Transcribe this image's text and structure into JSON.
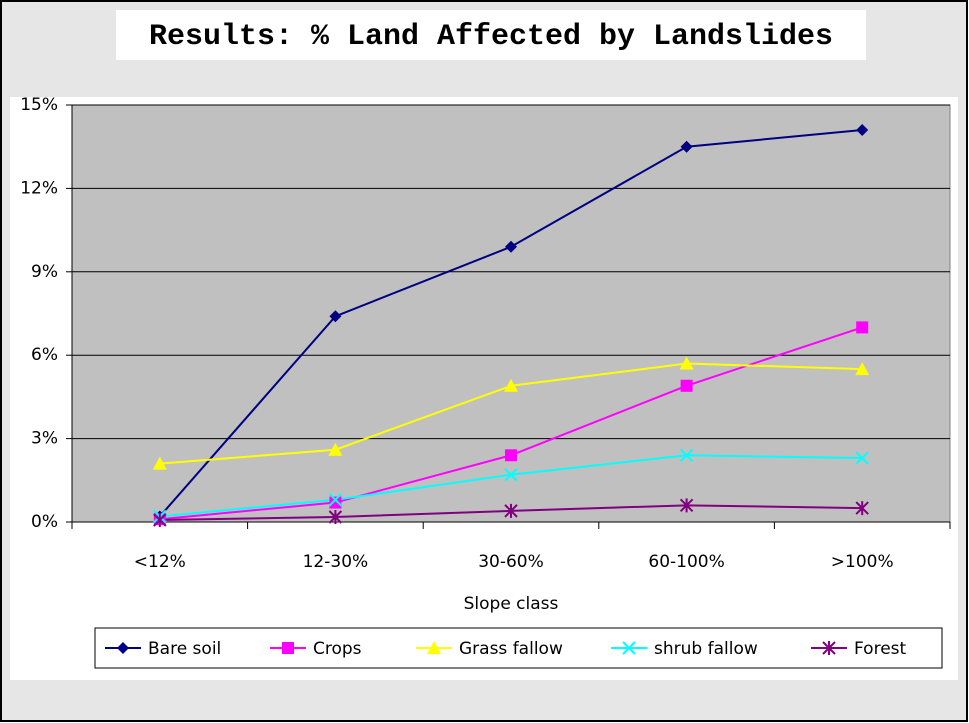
{
  "chart_data": {
    "type": "line",
    "title": "Results: % Land Affected by Landslides",
    "x_label": "Slope class",
    "categories": [
      "<12%",
      "12-30%",
      "30-60%",
      "60-100%",
      ">100%"
    ],
    "series": [
      {
        "name": "Bare soil",
        "color": "#000080",
        "marker": "diamond",
        "values": [
          0.2,
          7.4,
          9.9,
          13.5,
          14.1
        ]
      },
      {
        "name": "Crops",
        "color": "#ff00ff",
        "marker": "square",
        "values": [
          0.1,
          0.7,
          2.4,
          4.9,
          7.0
        ]
      },
      {
        "name": "Grass fallow",
        "color": "#ffff00",
        "marker": "triangle",
        "values": [
          2.1,
          2.6,
          4.9,
          5.7,
          5.5
        ]
      },
      {
        "name": "shrub fallow",
        "color": "#00ffff",
        "marker": "x",
        "values": [
          0.2,
          0.8,
          1.7,
          2.4,
          2.3
        ]
      },
      {
        "name": "Forest",
        "color": "#800080",
        "marker": "asterisk",
        "values": [
          0.07,
          0.18,
          0.4,
          0.6,
          0.5
        ]
      }
    ],
    "ylim": [
      0,
      15
    ],
    "yticks": [
      {
        "value": 0,
        "label": "0%"
      },
      {
        "value": 3,
        "label": "3%"
      },
      {
        "value": 6,
        "label": "6%"
      },
      {
        "value": 9,
        "label": "9%"
      },
      {
        "value": 12,
        "label": "12%"
      },
      {
        "value": 15,
        "label": "15%"
      }
    ],
    "grid": true,
    "legend": "bottom"
  }
}
